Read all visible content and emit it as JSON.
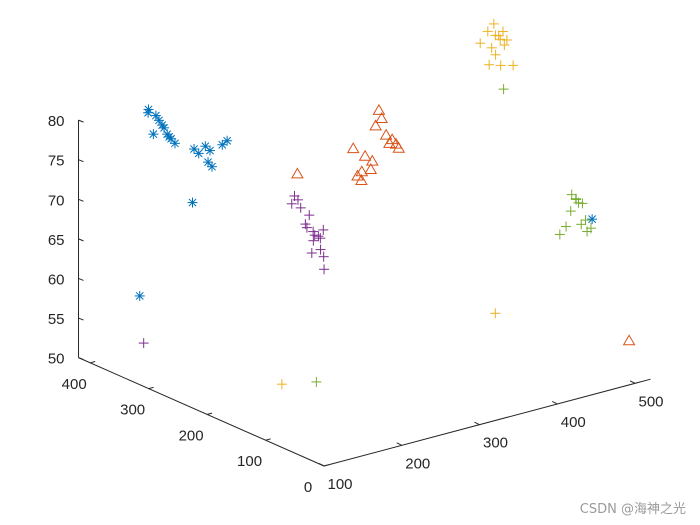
{
  "chart_data": {
    "type": "scatter3d",
    "axes": {
      "x": {
        "ticks": [
          100,
          200,
          300,
          400,
          500
        ],
        "lim": [
          100,
          520
        ]
      },
      "y": {
        "ticks": [
          0,
          100,
          200,
          300,
          400
        ],
        "lim": [
          0,
          420
        ]
      },
      "z": {
        "ticks": [
          50,
          55,
          60,
          65,
          70,
          75,
          80
        ],
        "lim": [
          50,
          80
        ]
      }
    },
    "grid": false,
    "series": [
      {
        "marker": "asterisk",
        "color": "#0072BD",
        "points": [
          [
            190,
            420,
            79
          ],
          [
            192,
            410,
            78.5
          ],
          [
            194,
            402,
            77.5
          ],
          [
            196,
            396,
            76.5
          ],
          [
            200,
            388,
            75.5
          ],
          [
            198,
            392,
            76
          ],
          [
            188,
            418,
            78.7
          ],
          [
            193,
            406,
            78
          ],
          [
            195,
            400,
            77.2
          ],
          [
            197,
            394,
            76.2
          ],
          [
            185,
            405,
            76.5
          ],
          [
            205,
            362,
            75.5
          ],
          [
            208,
            358,
            75
          ],
          [
            212,
            352,
            76
          ],
          [
            215,
            348,
            75.5
          ],
          [
            214,
            350,
            74
          ],
          [
            216,
            346,
            73.5
          ],
          [
            221,
            335,
            76.5
          ],
          [
            225,
            332,
            77
          ],
          [
            200,
            358,
            69
          ],
          [
            175,
            415,
            56
          ],
          [
            505,
            80,
            68
          ]
        ]
      },
      {
        "marker": "triangle",
        "color": "#D95319",
        "points": [
          [
            330,
            212,
            82
          ],
          [
            332,
            210,
            81
          ],
          [
            328,
            215,
            80
          ],
          [
            334,
            205,
            79
          ],
          [
            338,
            200,
            78.5
          ],
          [
            340,
            196,
            78
          ],
          [
            342,
            194,
            77.5
          ],
          [
            336,
            202,
            78
          ],
          [
            322,
            225,
            76
          ],
          [
            316,
            230,
            73.5
          ],
          [
            320,
            228,
            74
          ],
          [
            318,
            226,
            73
          ],
          [
            324,
            218,
            74.5
          ],
          [
            326,
            218,
            75.5
          ],
          [
            250,
            245,
            75
          ],
          [
            312,
            232,
            77
          ],
          [
            515,
            30,
            54
          ]
        ]
      },
      {
        "marker": "plus",
        "color": "#EDB120",
        "points": [
          [
            450,
            175,
            91
          ],
          [
            452,
            175,
            89.5
          ],
          [
            456,
            172,
            89
          ],
          [
            458,
            170,
            90
          ],
          [
            446,
            180,
            90
          ],
          [
            440,
            185,
            88.5
          ],
          [
            448,
            176,
            88
          ],
          [
            454,
            172,
            89.5
          ],
          [
            460,
            166,
            89
          ],
          [
            452,
            166,
            86
          ],
          [
            444,
            175,
            86
          ],
          [
            462,
            158,
            86
          ],
          [
            456,
            165,
            88.5
          ],
          [
            450,
            172,
            87.2
          ],
          [
            400,
            106,
            58
          ],
          [
            215,
            225,
            50
          ]
        ]
      },
      {
        "marker": "plus",
        "color": "#7E2F8E",
        "points": [
          [
            265,
            270,
            71
          ],
          [
            268,
            268,
            70.5
          ],
          [
            263,
            272,
            70
          ],
          [
            270,
            266,
            69.5
          ],
          [
            278,
            262,
            68.5
          ],
          [
            282,
            258,
            66
          ],
          [
            275,
            262,
            67
          ],
          [
            280,
            258,
            66.5
          ],
          [
            273,
            262,
            67.5
          ],
          [
            278,
            255,
            65.5
          ],
          [
            283,
            253,
            66
          ],
          [
            286,
            248,
            63.5
          ],
          [
            276,
            255,
            64
          ],
          [
            282,
            248,
            64.5
          ],
          [
            281,
            247,
            66
          ],
          [
            284,
            246,
            67
          ],
          [
            285,
            246,
            62
          ],
          [
            150,
            375,
            52
          ]
        ]
      },
      {
        "marker": "plus",
        "color": "#77AC30",
        "points": [
          [
            490,
            95,
            71
          ],
          [
            493,
            92,
            70.5
          ],
          [
            495,
            90,
            70
          ],
          [
            497,
            86,
            70
          ],
          [
            485,
            98,
            67
          ],
          [
            488,
            94,
            69
          ],
          [
            500,
            82,
            66.5
          ],
          [
            494,
            84,
            67.5
          ],
          [
            498,
            82,
            68
          ],
          [
            502,
            78,
            67
          ],
          [
            480,
            102,
            66
          ],
          [
            492,
            90,
            70.5
          ],
          [
            440,
            145,
            84
          ],
          [
            218,
            170,
            52
          ]
        ]
      }
    ]
  },
  "watermark": "CSDN @海神之光"
}
